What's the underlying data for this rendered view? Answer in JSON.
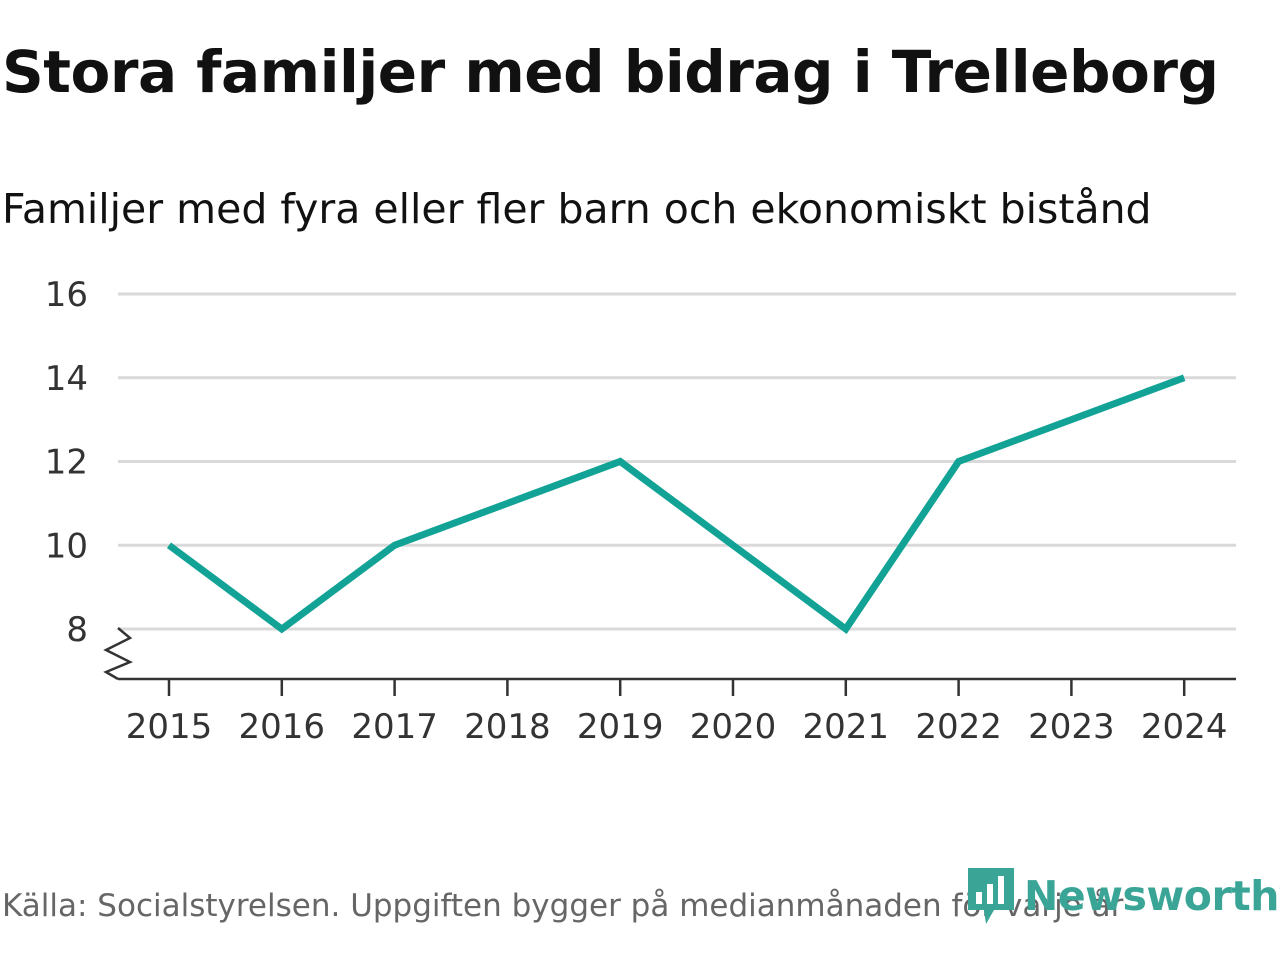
{
  "chart_data": {
    "type": "line",
    "title": "Stora familjer med bidrag i Trelleborg",
    "subtitle": "Familjer med fyra eller fler barn och ekonomiskt bistånd",
    "x": [
      "2015",
      "2016",
      "2017",
      "2018",
      "2019",
      "2020",
      "2021",
      "2022",
      "2023",
      "2024"
    ],
    "series": [
      {
        "name": "Familjer",
        "values": [
          10,
          8,
          10,
          11,
          12,
          10,
          8,
          12,
          13,
          14
        ]
      }
    ],
    "yticks": [
      "8",
      "10",
      "12",
      "14",
      "16"
    ],
    "ylim": [
      8,
      16
    ],
    "axis_break": true,
    "grid": true,
    "line_color": "#12a396",
    "grid_color": "#d9d9d9",
    "source": "Källa: Socialstyrelsen. Uppgiften bygger på medianmånaden för varje år"
  },
  "logo": {
    "text": "Newsworthy",
    "color": "#3aa597"
  }
}
